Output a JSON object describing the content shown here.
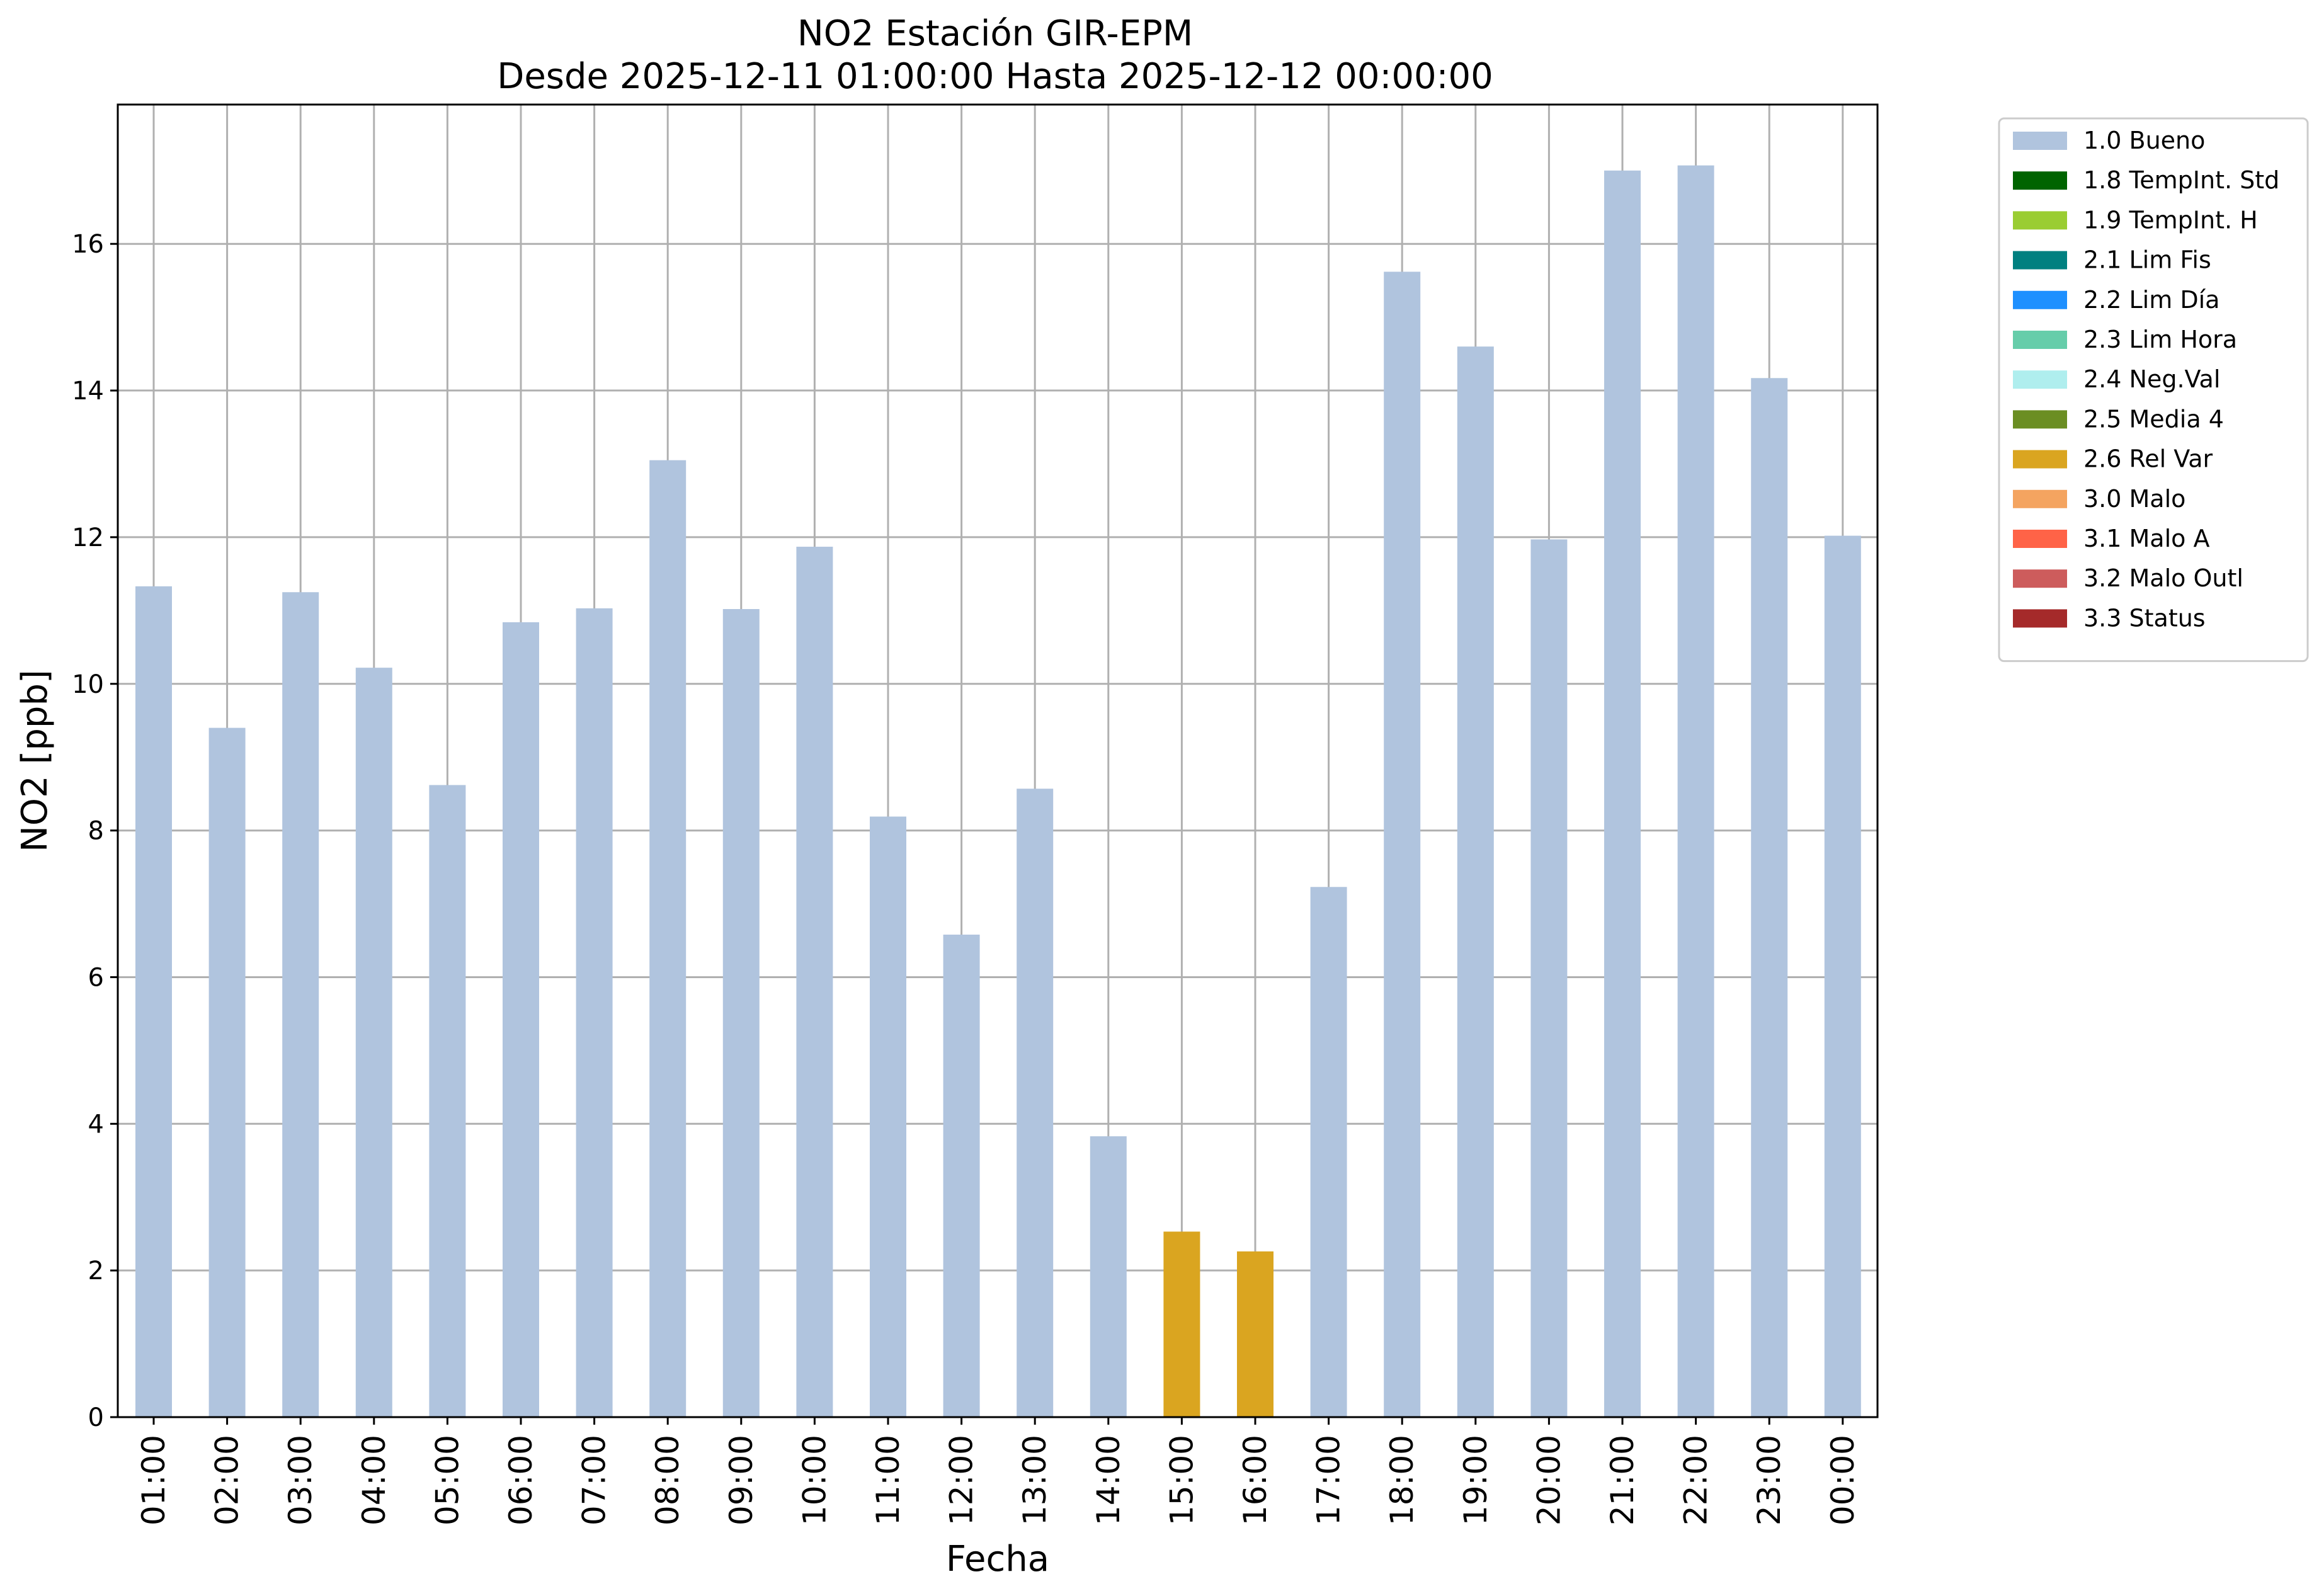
{
  "chart_data": {
    "type": "bar",
    "title": "NO2 Estación GIR-EPM",
    "subtitle": "Desde 2025-12-11 01:00:00 Hasta 2025-12-12 00:00:00",
    "xlabel": "Fecha",
    "ylabel": "NO2 [ppb]",
    "ylim": [
      0,
      17.9
    ],
    "yticks": [
      0,
      2,
      4,
      6,
      8,
      10,
      12,
      14,
      16
    ],
    "grid": true,
    "legend_position": "outside-top-right",
    "categories": [
      "01:00",
      "02:00",
      "03:00",
      "04:00",
      "05:00",
      "06:00",
      "07:00",
      "08:00",
      "09:00",
      "10:00",
      "11:00",
      "12:00",
      "13:00",
      "14:00",
      "15:00",
      "16:00",
      "17:00",
      "18:00",
      "19:00",
      "20:00",
      "21:00",
      "22:00",
      "23:00",
      "00:00"
    ],
    "values": [
      11.33,
      9.4,
      11.25,
      10.22,
      8.62,
      10.84,
      11.03,
      13.05,
      11.02,
      11.87,
      8.19,
      6.58,
      8.57,
      3.83,
      2.53,
      2.26,
      7.23,
      15.62,
      14.6,
      11.97,
      17.0,
      17.07,
      14.17,
      12.02
    ],
    "flags": [
      "1.0 Bueno",
      "1.0 Bueno",
      "1.0 Bueno",
      "1.0 Bueno",
      "1.0 Bueno",
      "1.0 Bueno",
      "1.0 Bueno",
      "1.0 Bueno",
      "1.0 Bueno",
      "1.0 Bueno",
      "1.0 Bueno",
      "1.0 Bueno",
      "1.0 Bueno",
      "1.0 Bueno",
      "2.6 Rel Var",
      "2.6 Rel Var",
      "1.0 Bueno",
      "1.0 Bueno",
      "1.0 Bueno",
      "1.0 Bueno",
      "1.0 Bueno",
      "1.0 Bueno",
      "1.0 Bueno",
      "1.0 Bueno"
    ],
    "legend": [
      {
        "label": "1.0 Bueno",
        "color": "#b0c4de"
      },
      {
        "label": "1.8 TempInt. Std",
        "color": "#006400"
      },
      {
        "label": "1.9 TempInt. H",
        "color": "#9acd32"
      },
      {
        "label": "2.1 Lim Fis",
        "color": "#008080"
      },
      {
        "label": "2.2 Lim Día",
        "color": "#1e90ff"
      },
      {
        "label": "2.3 Lim Hora",
        "color": "#66cdaa"
      },
      {
        "label": "2.4 Neg.Val",
        "color": "#afeeee"
      },
      {
        "label": "2.5 Media 4",
        "color": "#6b8e23"
      },
      {
        "label": "2.6 Rel Var",
        "color": "#daa520"
      },
      {
        "label": "3.0 Malo",
        "color": "#f4a460"
      },
      {
        "label": "3.1 Malo A",
        "color": "#ff6347"
      },
      {
        "label": "3.2 Malo Outl",
        "color": "#cd5c5c"
      },
      {
        "label": "3.3 Status",
        "color": "#a52a2a"
      }
    ]
  }
}
